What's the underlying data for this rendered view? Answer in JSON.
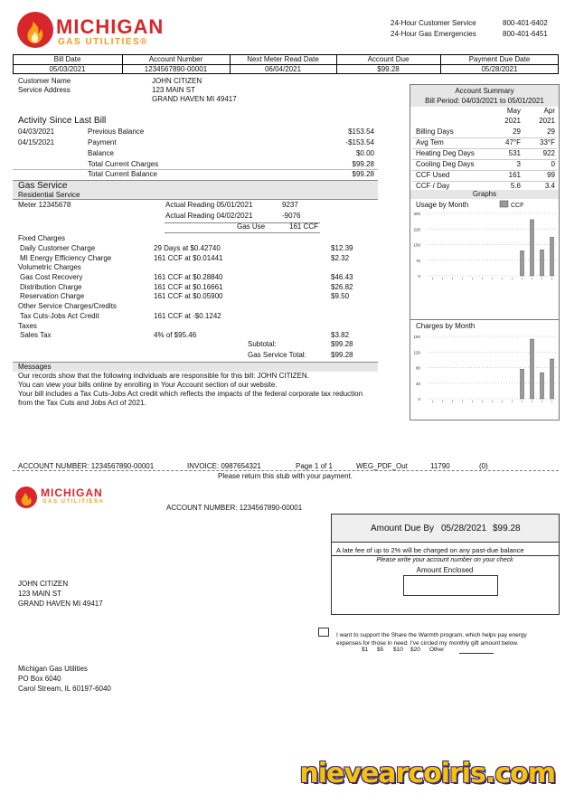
{
  "header": {
    "logo_top": "MICHIGAN",
    "logo_bottom": "GAS UTILITIES®",
    "contacts": [
      {
        "label": "24-Hour Customer Service",
        "phone": "800-401-6402"
      },
      {
        "label": "24-Hour Gas Emergencies",
        "phone": "800-401-6451"
      }
    ]
  },
  "bill_info": {
    "headers": [
      "Bill Date",
      "Account Number",
      "Next Meter Read Date",
      "Account Due",
      "Payment Due Date"
    ],
    "values": [
      "05/03/2021",
      "1234567890-00001",
      "06/04/2021",
      "$99.28",
      "05/28/2021"
    ]
  },
  "customer": {
    "labels": [
      "Customer Name",
      "Service Address"
    ],
    "lines": [
      "JOHN CITIZEN",
      "123 MAIN ST",
      "GRAND HAVEN MI 49417"
    ]
  },
  "activity": {
    "title": "Activity Since Last Bill",
    "rows": [
      {
        "date": "04/03/2021",
        "label": "Previous Balance",
        "amount": "$153.54"
      },
      {
        "date": "04/15/2021",
        "label": "Payment",
        "amount": "-$153.54"
      },
      {
        "label": "Balance",
        "amount": "$0.00"
      },
      {
        "label": "Total Current Charges",
        "amount": "$99.28"
      },
      {
        "label": "Total Current Balance",
        "amount": "$99.28"
      }
    ]
  },
  "gas_service": {
    "title": "Gas Service",
    "subtitle": "Residential Service",
    "meter": "Meter 12345678",
    "readings": [
      {
        "label": "Actual Reading 05/01/2021",
        "value": "9237"
      },
      {
        "label": "Actual Reading 04/02/2021",
        "value": "-9076"
      }
    ],
    "use_label": "Gas Use",
    "use_value": "161 CCF",
    "charges": [
      {
        "label": "Fixed Charges"
      },
      {
        "label": "Daily Customer Charge",
        "detail": "29 Days at $0.42740",
        "amount": "$12.39"
      },
      {
        "label": "MI Energy Efficiency Charge",
        "detail": "161 CCF at $0.01441",
        "amount": "$2.32"
      },
      {
        "label": "Volumetric Charges"
      },
      {
        "label": "Gas Cost Recovery",
        "detail": "161 CCF at $0.28840",
        "amount": "$46.43"
      },
      {
        "label": "Distribution Charge",
        "detail": "161 CCF at $0.16661",
        "amount": "$26.82"
      },
      {
        "label": "Reservation Charge",
        "detail": "161 CCF at $0.05900",
        "amount": "$9.50"
      },
      {
        "label": "Other Service Charges/Credits"
      },
      {
        "label": "Tax Cuts-Jobs Act Credit",
        "detail": "161 CCF at -$0.1242"
      },
      {
        "label": "Taxes"
      },
      {
        "label": "Sales Tax",
        "detail": "4% of $95.46",
        "amount": "$3.82"
      }
    ],
    "totals": [
      {
        "label": "Subtotal:",
        "amount": "$99.28"
      },
      {
        "label": "Gas Service Total:",
        "amount": "$99.28"
      }
    ]
  },
  "messages": {
    "title": "Messages",
    "lines": [
      "Our records show that the following individuals are responsible for this bill: JOHN CITIZEN.",
      "You can view your bills online by enrolling in Your Account section of our website.",
      "Your bill includes a Tax Cuts-Jobs Act credit which reflects the impacts of the federal corporate tax reduction",
      "from the Tax Cuts and Jobs Act of 2021."
    ]
  },
  "account_summary": {
    "title": "Account Summary",
    "period": "Bill Period: 04/03/2021 to 05/01/2021",
    "columns": [
      [
        "May",
        "2021"
      ],
      [
        "Apr",
        "2021"
      ]
    ],
    "rows": [
      [
        "Billing Days",
        "29",
        "29"
      ],
      [
        "Avg Tem",
        "47°F",
        "33°F"
      ],
      [
        "Heating Deg Days",
        "531",
        "922"
      ],
      [
        "Cooling Deg Days",
        "3",
        "0"
      ],
      [
        "CCF Used",
        "161",
        "99"
      ],
      [
        "CCF / Day",
        "5.6",
        "3.4"
      ]
    ],
    "graphs_label": "Graphs"
  },
  "chart_data": [
    {
      "type": "bar",
      "title": "Usage by Month",
      "categories": [
        null,
        null,
        null,
        null,
        null,
        null,
        null,
        null,
        null,
        null,
        null,
        null,
        null
      ],
      "series": [
        {
          "name": "CCF",
          "color": "#9a9a9a",
          "values": [
            null,
            null,
            null,
            null,
            null,
            null,
            null,
            null,
            null,
            120,
            270,
            125,
            185
          ]
        }
      ],
      "ylim": [
        0,
        300
      ],
      "yticks": [
        0,
        75,
        150,
        225,
        300
      ],
      "grid": true
    },
    {
      "type": "bar",
      "title": "Charges by Month",
      "categories": [
        null,
        null,
        null,
        null,
        null,
        null,
        null,
        null,
        null,
        null,
        null,
        null,
        null
      ],
      "series": [
        {
          "name": "Charges",
          "color": "#9a9a9a",
          "values": [
            null,
            null,
            null,
            null,
            null,
            null,
            null,
            null,
            null,
            76,
            153,
            67,
            102
          ]
        }
      ],
      "ylim": [
        0,
        160
      ],
      "yticks": [
        0,
        40,
        80,
        120,
        160
      ],
      "grid": true,
      "legend": false
    }
  ],
  "stub": {
    "fields": [
      "ACCOUNT NUMBER: 1234567890-00001",
      "INVOICE: 0987654321",
      "Page 1 of 1",
      "WEG_PDF_Out",
      "11790",
      "(0)"
    ],
    "note": "Please return this stub with your payment."
  },
  "remittance": {
    "account": "ACCOUNT NUMBER: 1234567890-00001",
    "due_label": "Amount Due By",
    "due_date": "05/28/2021",
    "due_amount": "$99.28",
    "late_fee": "A late fee of up to 2% will be charged on any past-due balance",
    "write_note": "Please write your account number on your check",
    "enclosed_label": "Amount Enclosed",
    "customer_lines": [
      "JOHN CITIZEN",
      "123 MAIN ST",
      "GRAND HAVEN MI 49417"
    ],
    "warmth_lines": [
      "I want to support the Share the Warmth program, which helps pay energy",
      "expenses for those in need. I've circled my monthly gift amount below."
    ],
    "gifts": [
      "$1",
      "$5",
      "$10",
      "$20",
      "Other"
    ],
    "mail_to": [
      "Michigan Gas Utilities",
      "PO Box 6040",
      "Carol Stream, IL 60197-6040"
    ]
  },
  "watermark": "nievearcoiris.com"
}
